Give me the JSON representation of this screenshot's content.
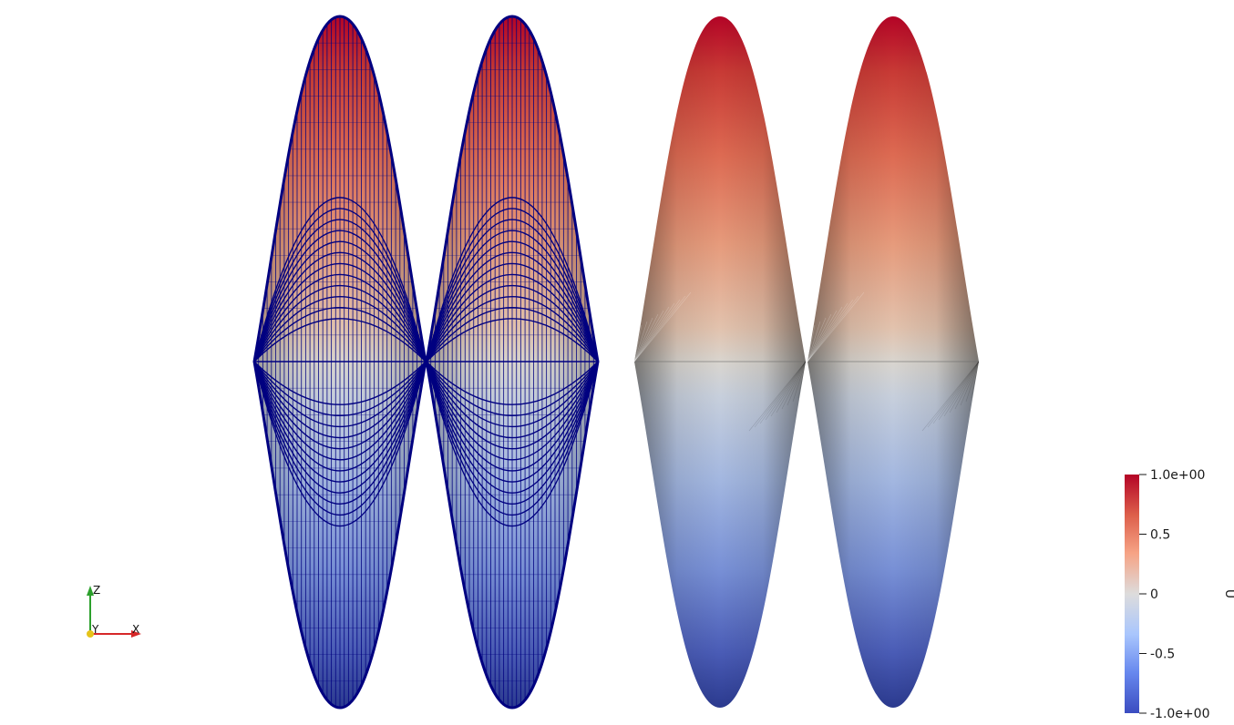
{
  "scalar_bar": {
    "title": "U",
    "labels": [
      "1.0e+00",
      "0.5",
      "0",
      "-0.5",
      "-1.0e+00"
    ],
    "range": [
      -1.0,
      1.0
    ],
    "colormap": [
      "#b40426",
      "#dd5f4b",
      "#f6a385",
      "#dddcdc",
      "#a9c6fd",
      "#6788ee",
      "#3b4cc0"
    ]
  },
  "orientation_axes": {
    "z_label": "Z",
    "y_label": "Y",
    "x_label": "X",
    "z_color": "#2ca02c",
    "y_color": "#e6c41a",
    "x_color": "#d62728"
  },
  "scene": {
    "background": "#ffffff",
    "mesh_edge_color": "#000080",
    "representations": [
      "Surface With Edges",
      "Surface With Edges",
      "Surface",
      "Surface"
    ]
  }
}
